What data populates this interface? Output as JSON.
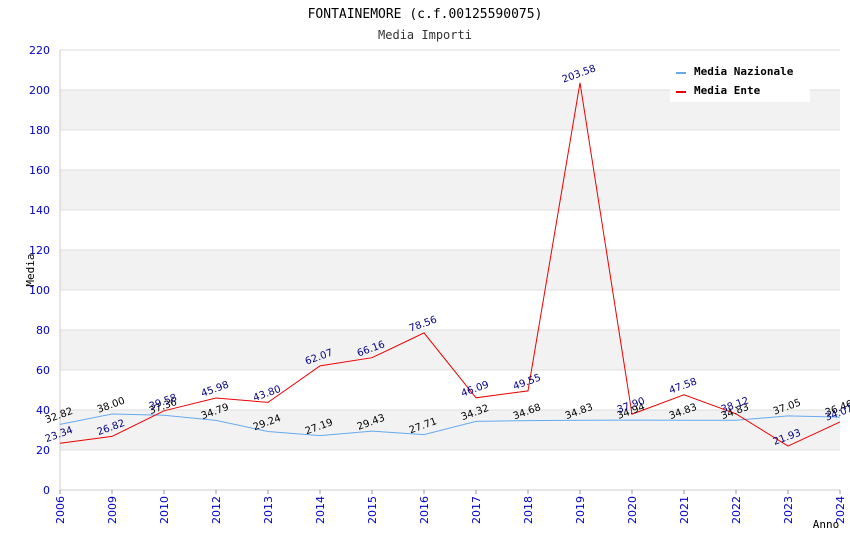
{
  "chart_data": {
    "type": "line",
    "title": "FONTAINEMORE (c.f.00125590075)",
    "subtitle": "Media Importi",
    "ylabel": "Media",
    "xlabel": "Anno",
    "ylim": [
      0,
      220
    ],
    "yticks": [
      0,
      20,
      40,
      60,
      80,
      100,
      120,
      140,
      160,
      180,
      200,
      220
    ],
    "grid": true,
    "legend_position": "top-right",
    "categories": [
      "2006",
      "2009",
      "2010",
      "2012",
      "2013",
      "2014",
      "2015",
      "2016",
      "2017",
      "2018",
      "2019",
      "2020",
      "2021",
      "2022",
      "2023",
      "2024"
    ],
    "series": [
      {
        "name": "Media Nazionale",
        "color": "#66aaee",
        "values": [
          32.82,
          38.0,
          37.36,
          34.79,
          29.24,
          27.19,
          29.43,
          27.71,
          34.32,
          34.68,
          34.83,
          34.94,
          34.83,
          34.83,
          37.05,
          36.46
        ],
        "labels": [
          "32.82",
          "38.00",
          "37.36",
          "34.79",
          "29.24",
          "27.19",
          "29.43",
          "27.71",
          "34.32",
          "34.68",
          "34.83",
          "34.94",
          "34.83",
          "34.83",
          "37.05",
          "36.46"
        ]
      },
      {
        "name": "Media Ente",
        "color": "#ee0000",
        "values": [
          23.34,
          26.82,
          39.58,
          45.98,
          43.8,
          62.07,
          66.16,
          78.56,
          46.09,
          49.55,
          203.58,
          37.9,
          47.58,
          38.12,
          21.93,
          34.07
        ],
        "labels": [
          "23.34",
          "26.82",
          "39.58",
          "45.98",
          "43.80",
          "62.07",
          "66.16",
          "78.56",
          "46.09",
          "49.55",
          "203.58",
          "37.90",
          "47.58",
          "38.12",
          "21.93",
          "34.07"
        ]
      }
    ]
  }
}
